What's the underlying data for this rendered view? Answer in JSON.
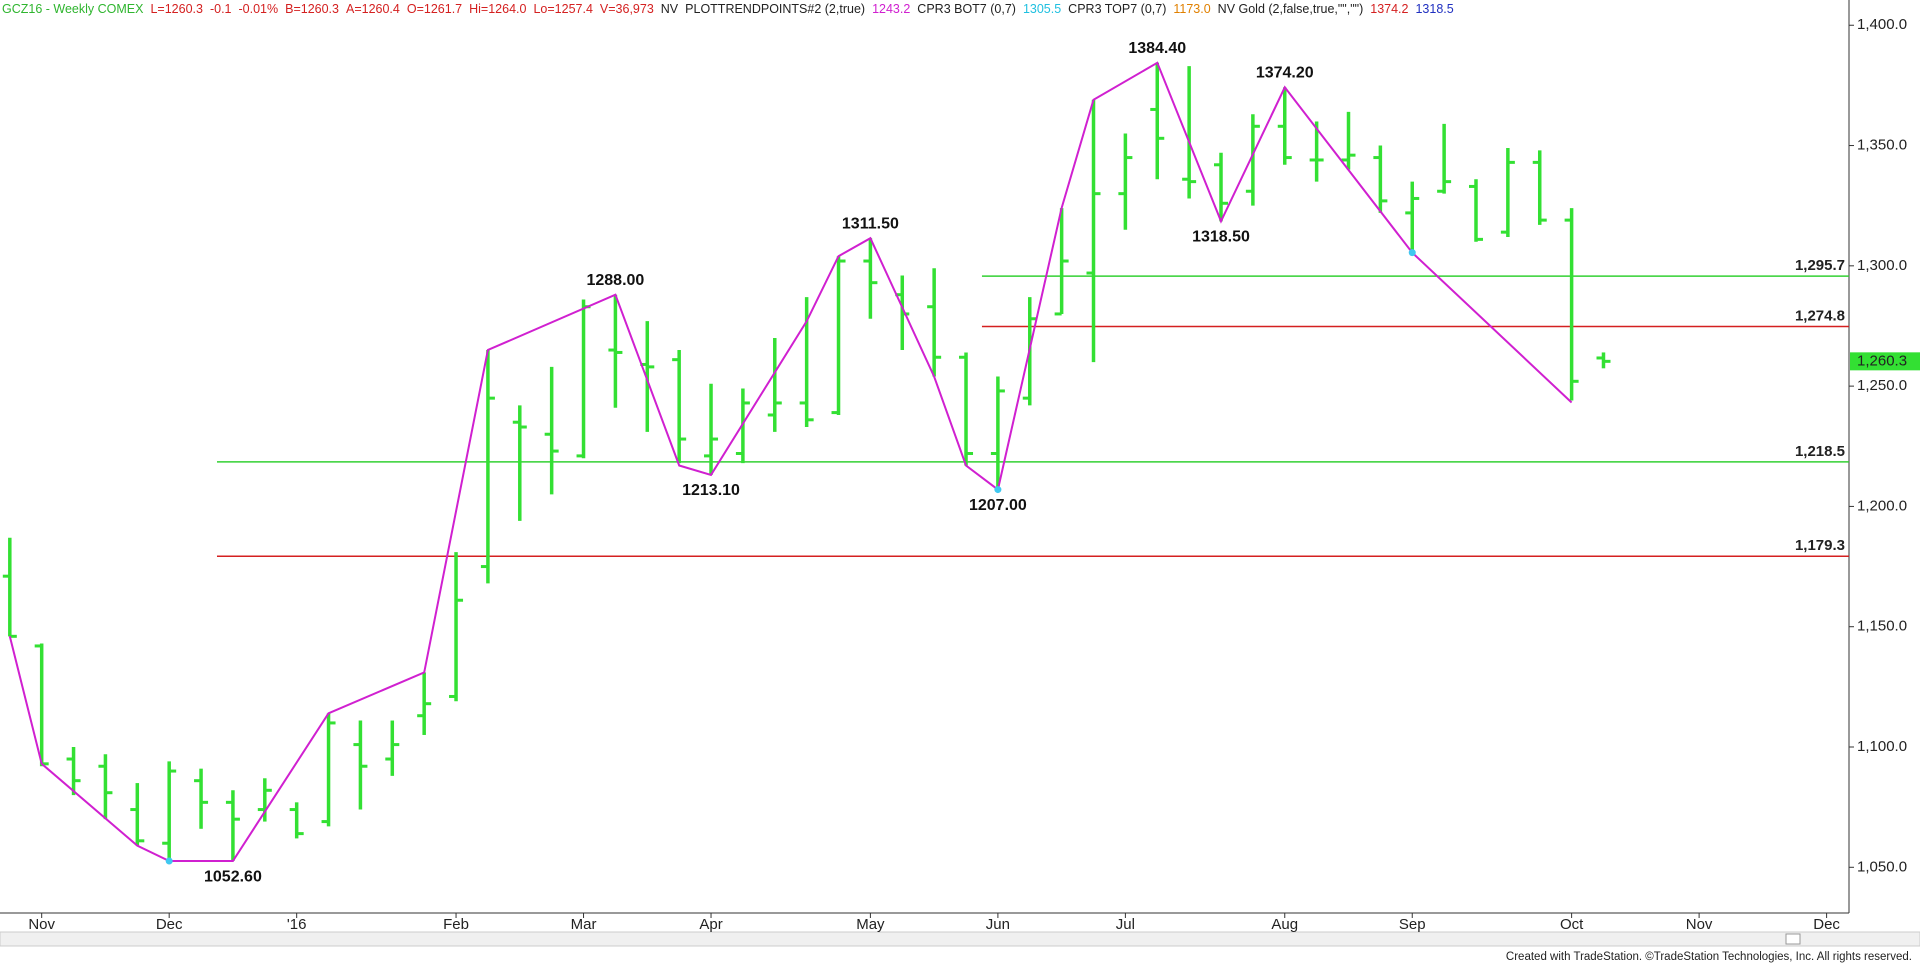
{
  "chart_data": {
    "type": "ohlc",
    "header": [
      {
        "text": "GCZ16 - Weekly COMEX",
        "color": "#2fb52f"
      },
      {
        "text": "L=1260.3",
        "color": "#d42020"
      },
      {
        "text": "-0.1",
        "color": "#d42020"
      },
      {
        "text": "-0.01%",
        "color": "#d42020"
      },
      {
        "text": "B=1260.3",
        "color": "#d42020"
      },
      {
        "text": "A=1260.4",
        "color": "#d42020"
      },
      {
        "text": "O=1261.7",
        "color": "#d42020"
      },
      {
        "text": "Hi=1264.0",
        "color": "#d42020"
      },
      {
        "text": "Lo=1257.4",
        "color": "#d42020"
      },
      {
        "text": "V=36,973",
        "color": "#d42020"
      },
      {
        "text": "NV",
        "color": "#222222"
      },
      {
        "text": "PLOTTRENDPOINTS#2 (2,true)",
        "color": "#222222"
      },
      {
        "text": "1243.2",
        "color": "#d020d0"
      },
      {
        "text": "CPR3 BOT7 (0,7)",
        "color": "#222222"
      },
      {
        "text": "1305.5",
        "color": "#20c0e0"
      },
      {
        "text": "CPR3 TOP7 (0,7)",
        "color": "#222222"
      },
      {
        "text": "1173.0",
        "color": "#e08000"
      },
      {
        "text": "NV Gold (2,false,true,\"\",\"\")",
        "color": "#222222"
      },
      {
        "text": "1374.2",
        "color": "#d42020"
      },
      {
        "text": "1318.5",
        "color": "#2030c0"
      }
    ],
    "categories": [
      null,
      "Nov",
      null,
      null,
      null,
      "Dec",
      null,
      null,
      null,
      "'16",
      null,
      null,
      null,
      null,
      "Feb",
      null,
      null,
      null,
      "Mar",
      null,
      null,
      null,
      "Apr",
      null,
      null,
      null,
      null,
      "May",
      null,
      null,
      null,
      "Jun",
      null,
      null,
      null,
      "Jul",
      null,
      null,
      null,
      null,
      "Aug",
      null,
      null,
      null,
      "Sep",
      null,
      null,
      null,
      null,
      "Oct",
      null,
      null,
      null,
      "Nov",
      null,
      null,
      null,
      "Dec"
    ],
    "open": [
      1171,
      1142,
      1095,
      1092,
      1074,
      1060,
      1086,
      1077,
      1074,
      1074,
      1069,
      1101,
      1095,
      1113,
      1121,
      1175,
      1235,
      1230,
      1221,
      1265,
      1259,
      1261,
      1221,
      1222,
      1238,
      1243,
      1239,
      1302,
      1288,
      1283,
      1262,
      1222,
      1245,
      1280,
      1297,
      1330,
      1365,
      1336,
      1342,
      1331,
      1358,
      1344,
      1344,
      1345,
      1322,
      1331,
      1333,
      1314,
      1343,
      1319,
      1261.7,
      null,
      null,
      null,
      null,
      null,
      null,
      null
    ],
    "high": [
      1187,
      1143,
      1100,
      1097,
      1085,
      1094,
      1091,
      1082,
      1087,
      1077,
      1114,
      1111,
      1111,
      1131,
      1181,
      1265,
      1242,
      1258,
      1286,
      1288,
      1277,
      1265,
      1251,
      1249,
      1270,
      1287,
      1304,
      1311.5,
      1296,
      1299,
      1264,
      1254,
      1287,
      1324,
      1369,
      1355,
      1384.4,
      1383,
      1347,
      1363,
      1374.2,
      1360,
      1364,
      1350,
      1335,
      1359,
      1336,
      1349,
      1348,
      1324,
      1264,
      null,
      null,
      null,
      null,
      null,
      null,
      null
    ],
    "low": [
      1146,
      1092,
      1080,
      1070,
      1059,
      1053,
      1066,
      1052.6,
      1069,
      1062,
      1067,
      1074,
      1088,
      1105,
      1119,
      1168,
      1194,
      1205,
      1220,
      1241,
      1231,
      1218,
      1213.1,
      1218,
      1231,
      1233,
      1238,
      1278,
      1265,
      1254,
      1217,
      1207,
      1242,
      1280,
      1260,
      1315,
      1336,
      1328,
      1318.5,
      1325,
      1342,
      1335,
      1340,
      1322,
      1306,
      1330,
      1310,
      1312,
      1317,
      1244,
      1257.4,
      null,
      null,
      null,
      null,
      null,
      null,
      null
    ],
    "close": [
      1146,
      1093,
      1086,
      1081,
      1061,
      1090,
      1077,
      1070,
      1082,
      1064,
      1110,
      1092,
      1101,
      1118,
      1161,
      1245,
      1233,
      1223,
      1283,
      1264,
      1258,
      1228,
      1228,
      1243,
      1243,
      1236,
      1302,
      1293,
      1280,
      1262,
      1222,
      1248,
      1278,
      1302,
      1330,
      1345,
      1353,
      1335,
      1326,
      1358,
      1345,
      1344,
      1346,
      1327,
      1328,
      1335,
      1311,
      1343,
      1319,
      1252,
      1260.3,
      null,
      null,
      null,
      null,
      null,
      null,
      null
    ],
    "color": "#33e033",
    "trend": {
      "name": "PLOTTRENDPOINTS#2 (2,true)",
      "color": "#d020d0",
      "x": [
        0,
        1,
        4,
        5,
        7,
        10,
        13,
        15,
        19,
        21,
        22,
        25,
        26,
        27,
        29,
        30,
        31,
        33,
        34,
        36,
        38,
        40,
        44,
        49
      ],
      "values": [
        1146,
        1093,
        1059,
        1052.6,
        1052.6,
        1114,
        1131,
        1265,
        1288,
        1217,
        1213.1,
        1277,
        1304,
        1311.5,
        1254,
        1217,
        1207,
        1324,
        1369,
        1384.4,
        1318.5,
        1374.2,
        1305.5,
        1243.2
      ]
    },
    "pivots": [
      {
        "x": 7,
        "value": 1052.6,
        "label": "1052.60",
        "side": "below"
      },
      {
        "x": 19,
        "value": 1288,
        "label": "1288.00",
        "side": "above"
      },
      {
        "x": 22,
        "value": 1213.1,
        "label": "1213.10",
        "side": "below"
      },
      {
        "x": 27,
        "value": 1311.5,
        "label": "1311.50",
        "side": "above"
      },
      {
        "x": 31,
        "value": 1207,
        "label": "1207.00",
        "side": "below"
      },
      {
        "x": 36,
        "value": 1384.4,
        "label": "1384.40",
        "side": "above"
      },
      {
        "x": 38,
        "value": 1318.5,
        "label": "1318.50",
        "side": "below"
      },
      {
        "x": 40,
        "value": 1374.2,
        "label": "1374.20",
        "side": "above"
      }
    ],
    "markers": [
      {
        "x": 5,
        "value": 1052.6
      },
      {
        "x": 31,
        "value": 1207
      },
      {
        "x": 44,
        "value": 1305.5
      }
    ],
    "marker_color": "#40c8f0",
    "hlines": [
      {
        "value": 1295.7,
        "label": "1,295.7",
        "color": "#33d033",
        "start": 31
      },
      {
        "value": 1274.8,
        "label": "1,274.8",
        "color": "#d42020",
        "start": 31
      },
      {
        "value": 1218.5,
        "label": "1,218.5",
        "color": "#33d033",
        "start": 7
      },
      {
        "value": 1179.3,
        "label": "1,179.3",
        "color": "#d42020",
        "start": 7
      }
    ],
    "last": {
      "value": 1260.3,
      "label": "1,260.3"
    },
    "ylim": [
      1031,
      1408
    ],
    "yticks": [
      {
        "value": 1050,
        "label": "1,050.0"
      },
      {
        "value": 1100,
        "label": "1,100.0"
      },
      {
        "value": 1150,
        "label": "1,150.0"
      },
      {
        "value": 1200,
        "label": "1,200.0"
      },
      {
        "value": 1250,
        "label": "1,250.0"
      },
      {
        "value": 1300,
        "label": "1,300.0"
      },
      {
        "value": 1350,
        "label": "1,350.0"
      },
      {
        "value": 1400,
        "label": "1,400.0"
      }
    ],
    "footer": "Created with TradeStation. ©TradeStation Technologies, Inc. All rights reserved."
  }
}
